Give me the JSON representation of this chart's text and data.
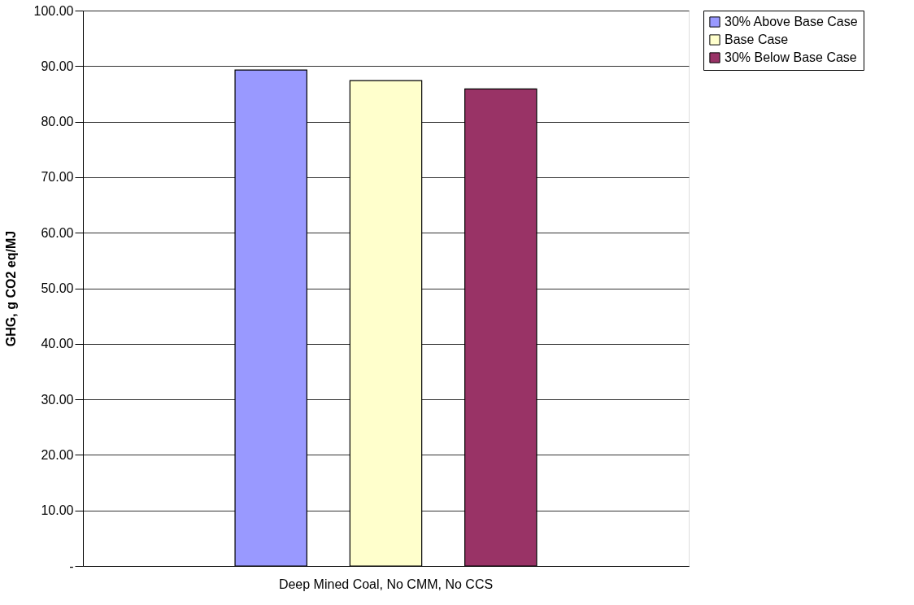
{
  "chart_data": {
    "type": "bar",
    "ylabel": "GHG, g CO2 eq/MJ",
    "categories": [
      "Deep Mined Coal, No CMM, No CCS"
    ],
    "series": [
      {
        "name": "30% Above Base Case",
        "color": "#9999ff",
        "values": [
          89.3
        ]
      },
      {
        "name": "Base Case",
        "color": "#ffffcc",
        "values": [
          87.4
        ]
      },
      {
        "name": "30% Below Base Case",
        "color": "#993366",
        "values": [
          85.9
        ]
      }
    ],
    "ylim": [
      0,
      100
    ],
    "yticks": [
      {
        "value": 0,
        "label": "-"
      },
      {
        "value": 10,
        "label": "10.00"
      },
      {
        "value": 20,
        "label": "20.00"
      },
      {
        "value": 30,
        "label": "30.00"
      },
      {
        "value": 40,
        "label": "40.00"
      },
      {
        "value": 50,
        "label": "50.00"
      },
      {
        "value": 60,
        "label": "60.00"
      },
      {
        "value": 70,
        "label": "70.00"
      },
      {
        "value": 80,
        "label": "80.00"
      },
      {
        "value": 90,
        "label": "90.00"
      },
      {
        "value": 100,
        "label": "100.00"
      }
    ],
    "grid": "y",
    "legend": "right"
  }
}
